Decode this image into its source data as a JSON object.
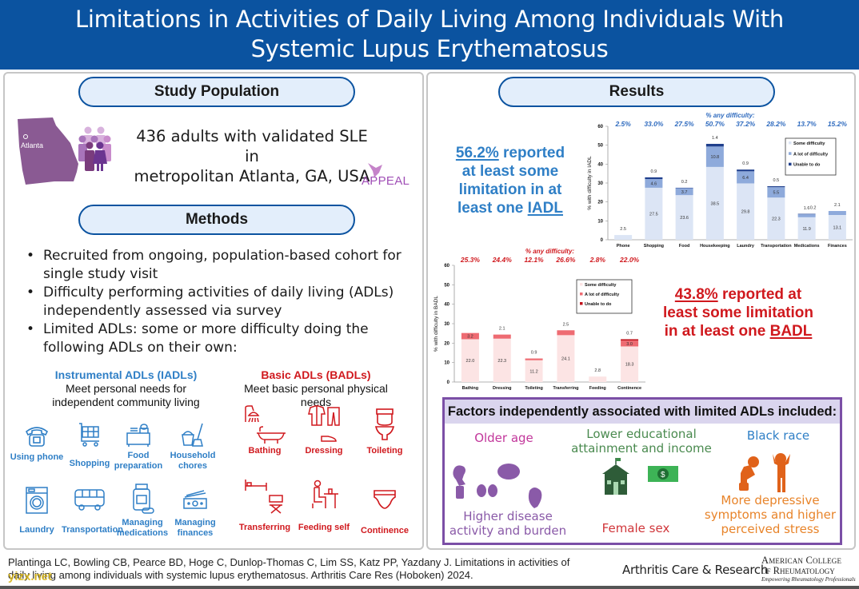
{
  "header": {
    "title_line1": "Limitations in Activities of Daily Living Among Individuals With",
    "title_line2": "Systemic Lupus Erythematosus"
  },
  "study_population": {
    "heading": "Study Population",
    "map_label": "Atlanta",
    "line1": "436 adults with validated SLE in",
    "line2": "metropolitan Atlanta, GA, USA",
    "logo": "APPEAL"
  },
  "methods": {
    "heading": "Methods",
    "bullets": [
      "Recruited from ongoing, population-based cohort for single study visit",
      "Difficulty performing activities of daily living (ADLs) independently assessed via survey",
      "Limited ADLs: some or more difficulty doing the following ADLs on their own:"
    ]
  },
  "iadl": {
    "title": "Instrumental ADLs (IADLs)",
    "subtitle_line1": "Meet personal needs for",
    "subtitle_line2": "independent community living",
    "color": "#2f7fc6",
    "items": [
      {
        "label": "Using phone",
        "icon": "phone-icon"
      },
      {
        "label": "Shopping",
        "icon": "shopping-cart-icon"
      },
      {
        "label": "Food preparation",
        "icon": "food-preparation-icon"
      },
      {
        "label": "Household chores",
        "icon": "bucket-broom-icon"
      },
      {
        "label": "Laundry",
        "icon": "washing-machine-icon"
      },
      {
        "label": "Transportation",
        "icon": "bus-icon"
      },
      {
        "label": "Managing medications",
        "icon": "pill-bottle-icon"
      },
      {
        "label": "Managing finances",
        "icon": "money-icon"
      }
    ]
  },
  "badl": {
    "title": "Basic ADLs (BADLs)",
    "subtitle_line1": "Meet basic personal physical",
    "subtitle_line2": "needs",
    "color": "#d0191e",
    "items": [
      {
        "label": "Bathing",
        "icon": "shower-bathtub-icon"
      },
      {
        "label": "Dressing",
        "icon": "clothes-icon"
      },
      {
        "label": "Toileting",
        "icon": "toilet-icon"
      },
      {
        "label": "Transferring",
        "icon": "bed-chair-icon"
      },
      {
        "label": "Feeding self",
        "icon": "person-eating-icon"
      },
      {
        "label": "Continence",
        "icon": "diaper-icon"
      }
    ]
  },
  "results": {
    "heading": "Results",
    "iadl_stat": {
      "pct": "56.2%",
      "text1": " reported",
      "text2": "at least some",
      "text3": "limitation in at",
      "text4": "least one ",
      "text5": "IADL"
    },
    "badl_stat": {
      "pct": "43.8%",
      "text1": " reported at",
      "text2": "least some limitation",
      "text3": "in at least one ",
      "text4": "BADL"
    }
  },
  "chart_data": [
    {
      "type": "bar",
      "stacked": true,
      "title": "% any difficulty:",
      "ylabel": "% with difficulty in IADL",
      "xlabel": "",
      "ylim": [
        0,
        60
      ],
      "yticks": [
        0,
        10,
        20,
        30,
        40,
        50,
        60
      ],
      "grid": false,
      "legend_position": "top-right",
      "categories": [
        "Phone",
        "Shopping",
        "Food",
        "Housekeeping",
        "Laundry",
        "Transportation",
        "Medications",
        "Finances"
      ],
      "totals_label": [
        "2.5%",
        "33.0%",
        "27.5%",
        "50.7%",
        "37.2%",
        "28.2%",
        "13.7%",
        "15.2%"
      ],
      "series": [
        {
          "name": "Some difficulty",
          "color": "#dce5f5",
          "values": [
            2.5,
            27.5,
            23.6,
            38.5,
            29.8,
            22.3,
            11.9,
            13.1
          ]
        },
        {
          "name": "A lot of difficulty",
          "color": "#8eaadb",
          "values": [
            0,
            4.6,
            3.7,
            10.8,
            6.4,
            5.5,
            1.6,
            2.1
          ]
        },
        {
          "name": "Unable to do",
          "color": "#1f3f8c",
          "values": [
            0,
            0.9,
            0.2,
            1.4,
            0.9,
            0.5,
            0.2,
            0
          ]
        }
      ],
      "label_color": "#2f6bbf"
    },
    {
      "type": "bar",
      "stacked": true,
      "title": "% any difficulty:",
      "ylabel": "% with difficulty in BADL",
      "xlabel": "",
      "ylim": [
        0,
        60
      ],
      "yticks": [
        0,
        10,
        20,
        30,
        40,
        50,
        60
      ],
      "grid": false,
      "legend_position": "top-right",
      "categories": [
        "Bathing",
        "Dressing",
        "Toileting",
        "Transferring",
        "Feeding",
        "Continence"
      ],
      "totals_label": [
        "25.3%",
        "24.4%",
        "12.1%",
        "26.6%",
        "2.8%",
        "22.0%"
      ],
      "series": [
        {
          "name": "Some difficulty",
          "color": "#fce4e4",
          "values": [
            22.0,
            22.3,
            11.2,
            24.1,
            2.8,
            18.3
          ]
        },
        {
          "name": "A lot of difficulty",
          "color": "#ee6b72",
          "values": [
            3.2,
            2.1,
            0.9,
            2.5,
            0,
            3.0
          ]
        },
        {
          "name": "Unable to do",
          "color": "#c0101a",
          "values": [
            0,
            0,
            0,
            0,
            0,
            0.7
          ]
        }
      ],
      "label_color": "#d0191e"
    }
  ],
  "factors": {
    "heading": "Factors independently associated with limited ADLs included:",
    "items": [
      {
        "label": "Older age",
        "color": "#c2379b"
      },
      {
        "label": "Lower educational attainment and income",
        "color": "#4a8a4f"
      },
      {
        "label": "Black race",
        "color": "#2f7fc6"
      },
      {
        "label": "Higher disease activity and burden",
        "color": "#8a5aa8"
      },
      {
        "label": "Female sex",
        "color": "#d0363a"
      },
      {
        "label": "More depressive symptoms and higher perceived stress",
        "color": "#e8842a"
      }
    ]
  },
  "footer": {
    "citation": "Plantinga LC, Bowling CB, Pearce BD, Hoge C, Dunlop-Thomas C, Lim SS, Katz PP, Yazdany J. Limitations in activities of daily living among individuals with systemic lupus erythematosus. Arthritis Care Res (Hoboken) 2024.",
    "journal": "Arthritis Care & Research",
    "org_line1": "American College",
    "org_line2": "of Rheumatology",
    "org_tagline": "Empowering Rheumatology Professionals",
    "watermark": "yizx.net"
  }
}
